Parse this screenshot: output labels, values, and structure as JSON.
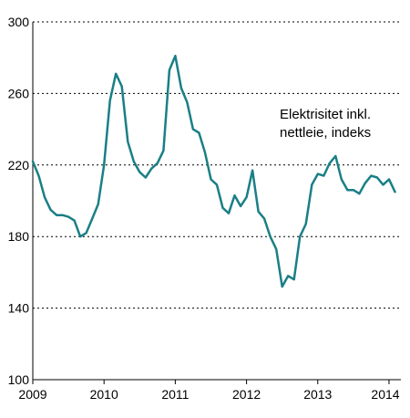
{
  "chart_data": {
    "type": "line",
    "title": "",
    "xlabel": "",
    "ylabel": "",
    "ylim": [
      100,
      300
    ],
    "xlim": [
      2009,
      2014.1667
    ],
    "yticks": [
      100,
      140,
      180,
      220,
      260,
      300
    ],
    "xticks": [
      {
        "value": 2009,
        "label": "2009"
      },
      {
        "value": 2010,
        "label": "2010"
      },
      {
        "value": 2011,
        "label": "2011"
      },
      {
        "value": 2012,
        "label": "2012"
      },
      {
        "value": 2013,
        "label": "2013"
      },
      {
        "value": 2014,
        "label": "2014"
      }
    ],
    "grid": "horizontal-dotted",
    "annotation": [
      "Elektrisitet inkl.",
      "nettleie, indeks"
    ],
    "series": [
      {
        "color": "#1a7f86",
        "x": [
          2009.0,
          2009.0833,
          2009.1667,
          2009.25,
          2009.3333,
          2009.4167,
          2009.5,
          2009.5833,
          2009.6667,
          2009.75,
          2009.8333,
          2009.9167,
          2010.0,
          2010.0833,
          2010.1667,
          2010.25,
          2010.3333,
          2010.4167,
          2010.5,
          2010.5833,
          2010.6667,
          2010.75,
          2010.8333,
          2010.9167,
          2011.0,
          2011.0833,
          2011.1667,
          2011.25,
          2011.3333,
          2011.4167,
          2011.5,
          2011.5833,
          2011.6667,
          2011.75,
          2011.8333,
          2011.9167,
          2012.0,
          2012.0833,
          2012.1667,
          2012.25,
          2012.3333,
          2012.4167,
          2012.5,
          2012.5833,
          2012.6667,
          2012.75,
          2012.8333,
          2012.9167,
          2013.0,
          2013.0833,
          2013.1667,
          2013.25,
          2013.3333,
          2013.4167,
          2013.5,
          2013.5833,
          2013.6667,
          2013.75,
          2013.8333,
          2013.9167,
          2014.0,
          2014.0833
        ],
        "y": [
          222,
          214,
          202,
          195,
          192,
          192,
          191,
          189,
          180,
          182,
          190,
          198,
          220,
          256,
          271,
          264,
          233,
          222,
          216,
          213,
          218,
          221,
          228,
          273,
          281,
          263,
          255,
          240,
          238,
          227,
          212,
          209,
          196,
          193,
          203,
          197,
          202,
          217,
          194,
          190,
          180,
          173,
          152,
          158,
          156,
          180,
          187,
          209,
          215,
          214,
          221,
          225,
          212,
          206,
          206,
          204,
          210,
          214,
          213,
          209,
          212,
          205
        ]
      }
    ]
  }
}
